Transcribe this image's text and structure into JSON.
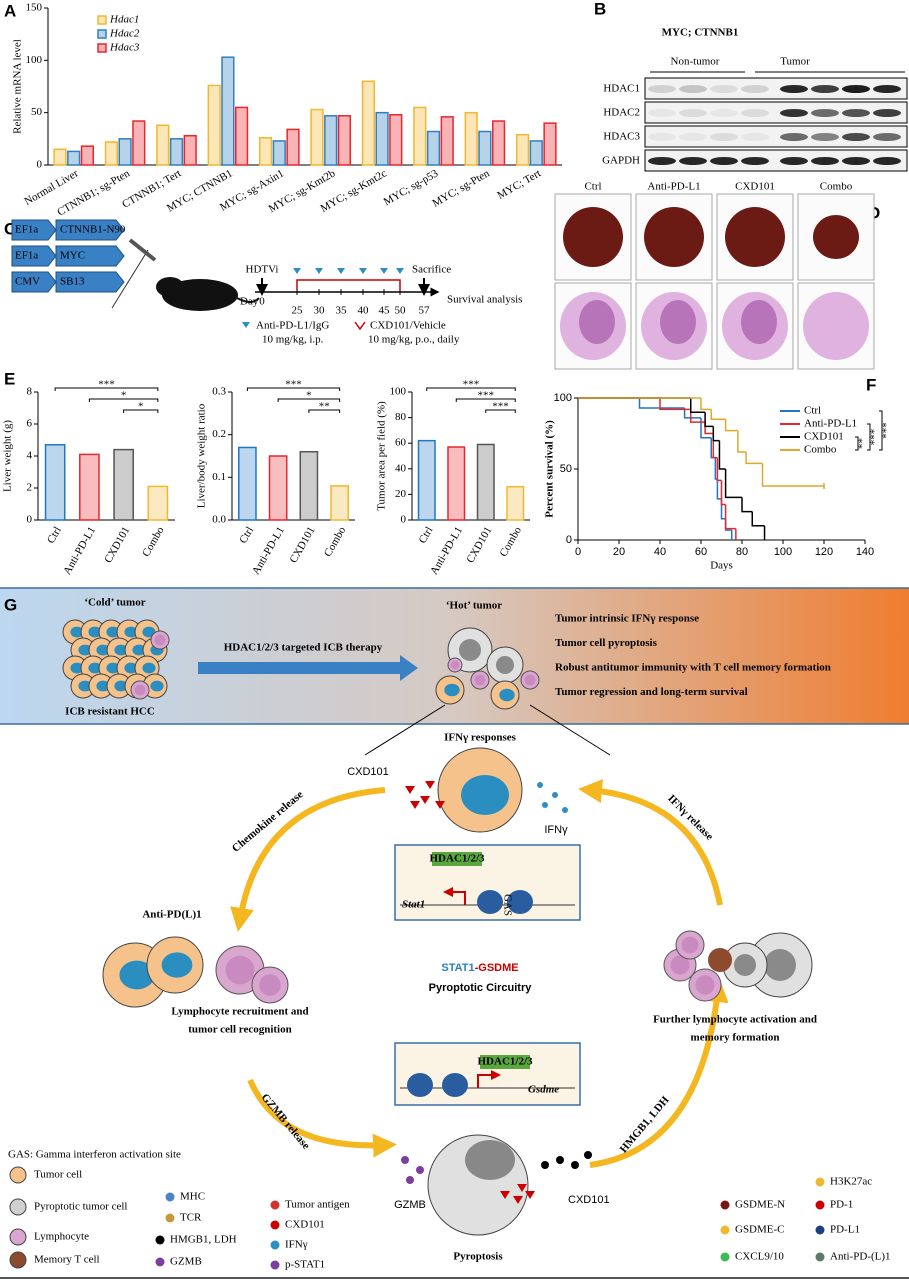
{
  "panel_labels": [
    "A",
    "B",
    "C",
    "D",
    "E",
    "F",
    "G"
  ],
  "chart_data": [
    {
      "type": "bar",
      "ylabel": "Relative mRNA level",
      "categories": [
        "Normal Liver",
        "CTNNB1; sg-Pten",
        "CTNNB1; Tert",
        "MYC; CTNNB1",
        "MYC; sg-Axin1",
        "MYC; sg-Kmt2b",
        "MYC; sg-Kmt2c",
        "MYC; sg-p53",
        "MYC; sg-Pten",
        "MYC; Tert"
      ],
      "category_colors": [
        "#000000",
        "#000000",
        "#000000",
        "#d62728",
        "#000000",
        "#000000",
        "#000000",
        "#000000",
        "#000000",
        "#000000"
      ],
      "series": [
        {
          "name": "Hdac1",
          "color": "#f2b731",
          "values": [
            15,
            22,
            38,
            76,
            26,
            53,
            80,
            55,
            50,
            29
          ]
        },
        {
          "name": "Hdac2",
          "color": "#2f7fc1",
          "values": [
            13,
            25,
            25,
            103,
            23,
            47,
            50,
            32,
            32,
            23
          ]
        },
        {
          "name": "Hdac3",
          "color": "#e8262b",
          "values": [
            18,
            42,
            28,
            55,
            34,
            47,
            48,
            46,
            42,
            40
          ]
        }
      ],
      "ylim": [
        0,
        150
      ],
      "yticks": [
        0,
        50,
        100,
        150
      ]
    },
    {
      "type": "bar",
      "ylabel": "Liver weight (g)",
      "categories": [
        "Ctrl",
        "Anti-PD-L1",
        "CXD101",
        "Combo"
      ],
      "colors": [
        "#1f77c4",
        "#e8262b",
        "#555555",
        "#f2b731"
      ],
      "values": [
        4.7,
        4.1,
        4.4,
        2.1
      ],
      "ylim": [
        0,
        8
      ],
      "yticks": [
        0,
        2,
        4,
        6,
        8
      ],
      "significance": [
        "***",
        "*",
        "*"
      ]
    },
    {
      "type": "bar",
      "ylabel": "Liver/body weight ratio",
      "categories": [
        "Ctrl",
        "Anti-PD-L1",
        "CXD101",
        "Combo"
      ],
      "colors": [
        "#1f77c4",
        "#e8262b",
        "#555555",
        "#f2b731"
      ],
      "values": [
        0.17,
        0.15,
        0.16,
        0.08
      ],
      "ylim": [
        0,
        0.3
      ],
      "yticks": [
        {
          "value": 0,
          "label": "0.0"
        },
        0.1,
        0.2,
        0.3
      ],
      "significance": [
        "***",
        "*",
        "**"
      ]
    },
    {
      "type": "bar",
      "ylabel": "Tumor area per field (%)",
      "categories": [
        "Ctrl",
        "Anti-PD-L1",
        "CXD101",
        "Combo"
      ],
      "colors": [
        "#1f77c4",
        "#e8262b",
        "#555555",
        "#f2b731"
      ],
      "values": [
        62,
        57,
        59,
        26
      ],
      "ylim": [
        0,
        100
      ],
      "yticks": [
        0,
        20,
        40,
        60,
        80,
        100
      ],
      "significance": [
        "***",
        "***",
        "***"
      ]
    },
    {
      "type": "line",
      "xlabel": "Days",
      "ylabel": "Percent survival (%)",
      "series": [
        {
          "name": "Ctrl",
          "color": "#1f77c4",
          "x": [
            0,
            30,
            52,
            60,
            65,
            67,
            68,
            70,
            72,
            75
          ],
          "values": [
            100,
            93,
            86,
            72,
            58,
            43,
            29,
            15,
            7,
            0
          ]
        },
        {
          "name": "Anti-PD-L1",
          "color": "#e8262b",
          "x": [
            0,
            40,
            55,
            62,
            66,
            68,
            70,
            72,
            77
          ],
          "values": [
            100,
            92,
            83,
            75,
            58,
            42,
            25,
            8,
            0
          ]
        },
        {
          "name": "CXD101",
          "color": "#000000",
          "x": [
            0,
            55,
            62,
            66,
            69,
            72,
            80,
            85,
            91
          ],
          "values": [
            100,
            90,
            80,
            70,
            50,
            30,
            20,
            10,
            0
          ]
        },
        {
          "name": "Combo",
          "color": "#e0a82e",
          "x": [
            0,
            60,
            65,
            72,
            78,
            82,
            90,
            120
          ],
          "values": [
            100,
            92,
            85,
            77,
            62,
            54,
            38,
            38
          ]
        }
      ],
      "xlim": [
        0,
        140
      ],
      "xticks": [
        0,
        20,
        40,
        60,
        80,
        100,
        120,
        140
      ],
      "ylim": [
        0,
        100
      ],
      "yticks": [
        0,
        50,
        100
      ],
      "significance": [
        "**",
        "***",
        "***"
      ]
    }
  ],
  "blot": {
    "title": "MYC; CTNNB1",
    "groups": [
      "Non-tumor",
      "Tumor"
    ],
    "proteins": [
      "HDAC1",
      "HDAC2",
      "HDAC3",
      "GAPDH"
    ]
  },
  "schema": {
    "constructs": [
      {
        "promoter": "EF1a",
        "gene": "CTNNB1-N90"
      },
      {
        "promoter": "EF1a",
        "gene": "MYC"
      },
      {
        "promoter": "CMV",
        "gene": "SB13"
      }
    ],
    "injection": "HDTVi",
    "day": "Day",
    "days": [
      0,
      25,
      30,
      35,
      40,
      45,
      50,
      57
    ],
    "sacrifice": "Sacrifice",
    "endpoint": "Survival analysis",
    "treatments": [
      {
        "name": "Anti-PD-L1/IgG",
        "dose": "10 mg/kg, i.p."
      },
      {
        "name": "CXD101/Vehicle",
        "dose": "10 mg/kg, p.o., daily"
      }
    ]
  },
  "images": {
    "groups": [
      "Ctrl",
      "Anti-PD-L1",
      "CXD101",
      "Combo"
    ]
  },
  "model": {
    "cold": "‘Cold’ tumor",
    "hot": "‘Hot’ tumor",
    "therapy": "HDAC1/2/3 targeted ICB therapy",
    "resistant": "ICB resistant HCC",
    "outcomes": [
      "Tumor intrinsic IFNγ response",
      "Tumor cell pyroptosis",
      "Robust antitumor immunity with T cell memory formation",
      "Tumor regression and long-term survival"
    ],
    "ifn_responses": "IFNγ responses",
    "cxd_top": "CXD101",
    "ifng": "IFNγ",
    "chemokine": "Chemokine release",
    "ifng_release": "IFNγ release",
    "hdac_top": "HDAC1/2/3",
    "stat1": "Stat1",
    "gas": "GAS",
    "anti_pd": "Anti-PD(L)1",
    "recognition": [
      "Lymphocyte recruitment and",
      "tumor cell recognition"
    ],
    "center_a": "STAT1",
    "center_b": "-GSDME",
    "center_c": "Pyroptotic Circuitry",
    "activation": [
      "Further lymphocyte activation and",
      "memory formation"
    ],
    "hdac_bottom": "HDAC1/2/3",
    "gsdme": "Gsdme",
    "gzmb_release": "GZMB release",
    "hmgb_release": "HMGB1, LDH",
    "gzmb": "GZMB",
    "cxd_bottom": "CXD101",
    "pyroptosis": "Pyroptosis",
    "gas_note": "GAS: Gamma interferon activation site",
    "legend": [
      "Tumor cell",
      "Pyroptotic tumor cell",
      "Lymphocyte",
      "Memory T cell",
      "MHC",
      "TCR",
      "HMGB1, LDH",
      "GZMB",
      "Tumor antigen",
      "CXD101",
      "IFNγ",
      "p-STAT1",
      "GSDME-N",
      "GSDME-C",
      "CXCL9/10",
      "H3K27ac",
      "PD-1",
      "PD-L1",
      "Anti-PD-(L)1"
    ]
  }
}
